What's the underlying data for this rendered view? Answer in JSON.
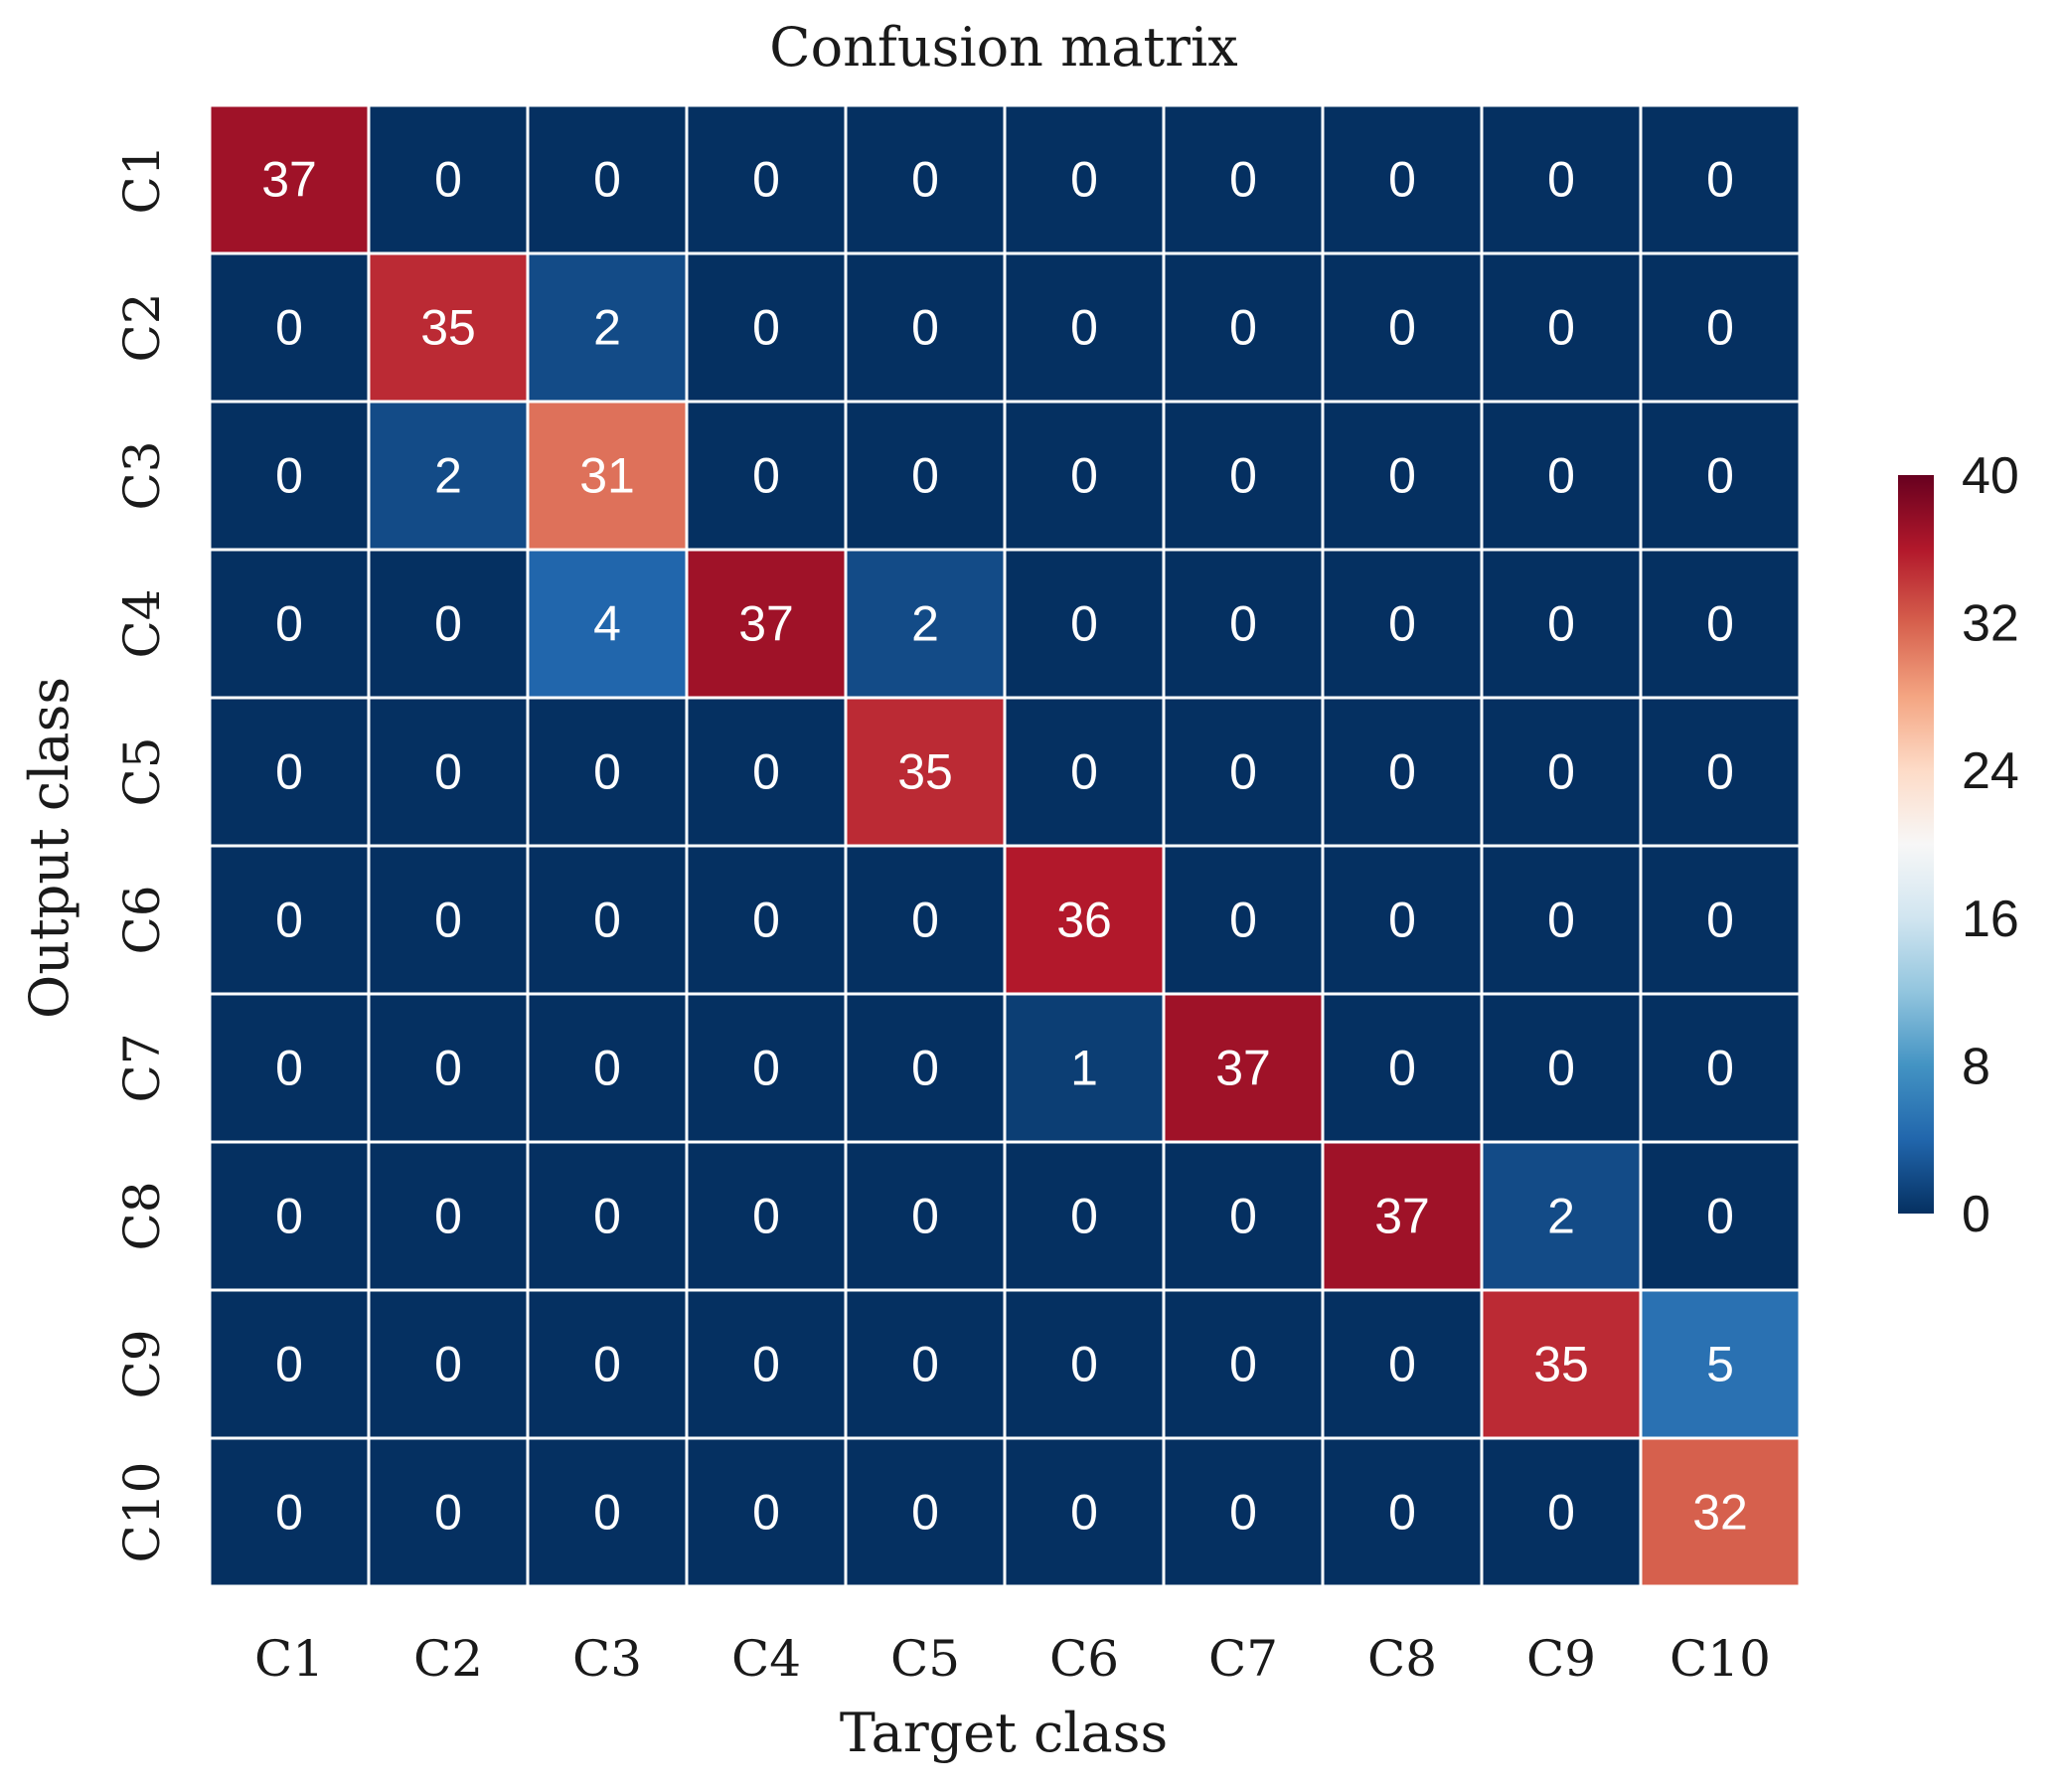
{
  "chart_data": {
    "type": "heatmap",
    "title": "Confusion matrix",
    "xlabel": "Target class",
    "ylabel": "Output class",
    "x_categories": [
      "C1",
      "C2",
      "C3",
      "C4",
      "C5",
      "C6",
      "C7",
      "C8",
      "C9",
      "C10"
    ],
    "y_categories": [
      "C1",
      "C2",
      "C3",
      "C4",
      "C5",
      "C6",
      "C7",
      "C8",
      "C9",
      "C10"
    ],
    "values": [
      [
        37,
        0,
        0,
        0,
        0,
        0,
        0,
        0,
        0,
        0
      ],
      [
        0,
        35,
        2,
        0,
        0,
        0,
        0,
        0,
        0,
        0
      ],
      [
        0,
        2,
        31,
        0,
        0,
        0,
        0,
        0,
        0,
        0
      ],
      [
        0,
        0,
        4,
        37,
        2,
        0,
        0,
        0,
        0,
        0
      ],
      [
        0,
        0,
        0,
        0,
        35,
        0,
        0,
        0,
        0,
        0
      ],
      [
        0,
        0,
        0,
        0,
        0,
        36,
        0,
        0,
        0,
        0
      ],
      [
        0,
        0,
        0,
        0,
        0,
        1,
        37,
        0,
        0,
        0
      ],
      [
        0,
        0,
        0,
        0,
        0,
        0,
        0,
        37,
        2,
        0
      ],
      [
        0,
        0,
        0,
        0,
        0,
        0,
        0,
        0,
        35,
        5
      ],
      [
        0,
        0,
        0,
        0,
        0,
        0,
        0,
        0,
        0,
        32
      ]
    ],
    "colorbar": {
      "range": [
        0,
        40
      ],
      "ticks": [
        0,
        8,
        16,
        24,
        32,
        40
      ],
      "colormap": "RdBu_r",
      "colors": [
        "#053061",
        "#2166ac",
        "#4393c3",
        "#92c5de",
        "#d1e5f0",
        "#f7f7f7",
        "#fddbc7",
        "#f4a582",
        "#d6604d",
        "#b2182b",
        "#67001f"
      ]
    },
    "gridlines": "white",
    "cell_text_color": "#ffffff"
  }
}
